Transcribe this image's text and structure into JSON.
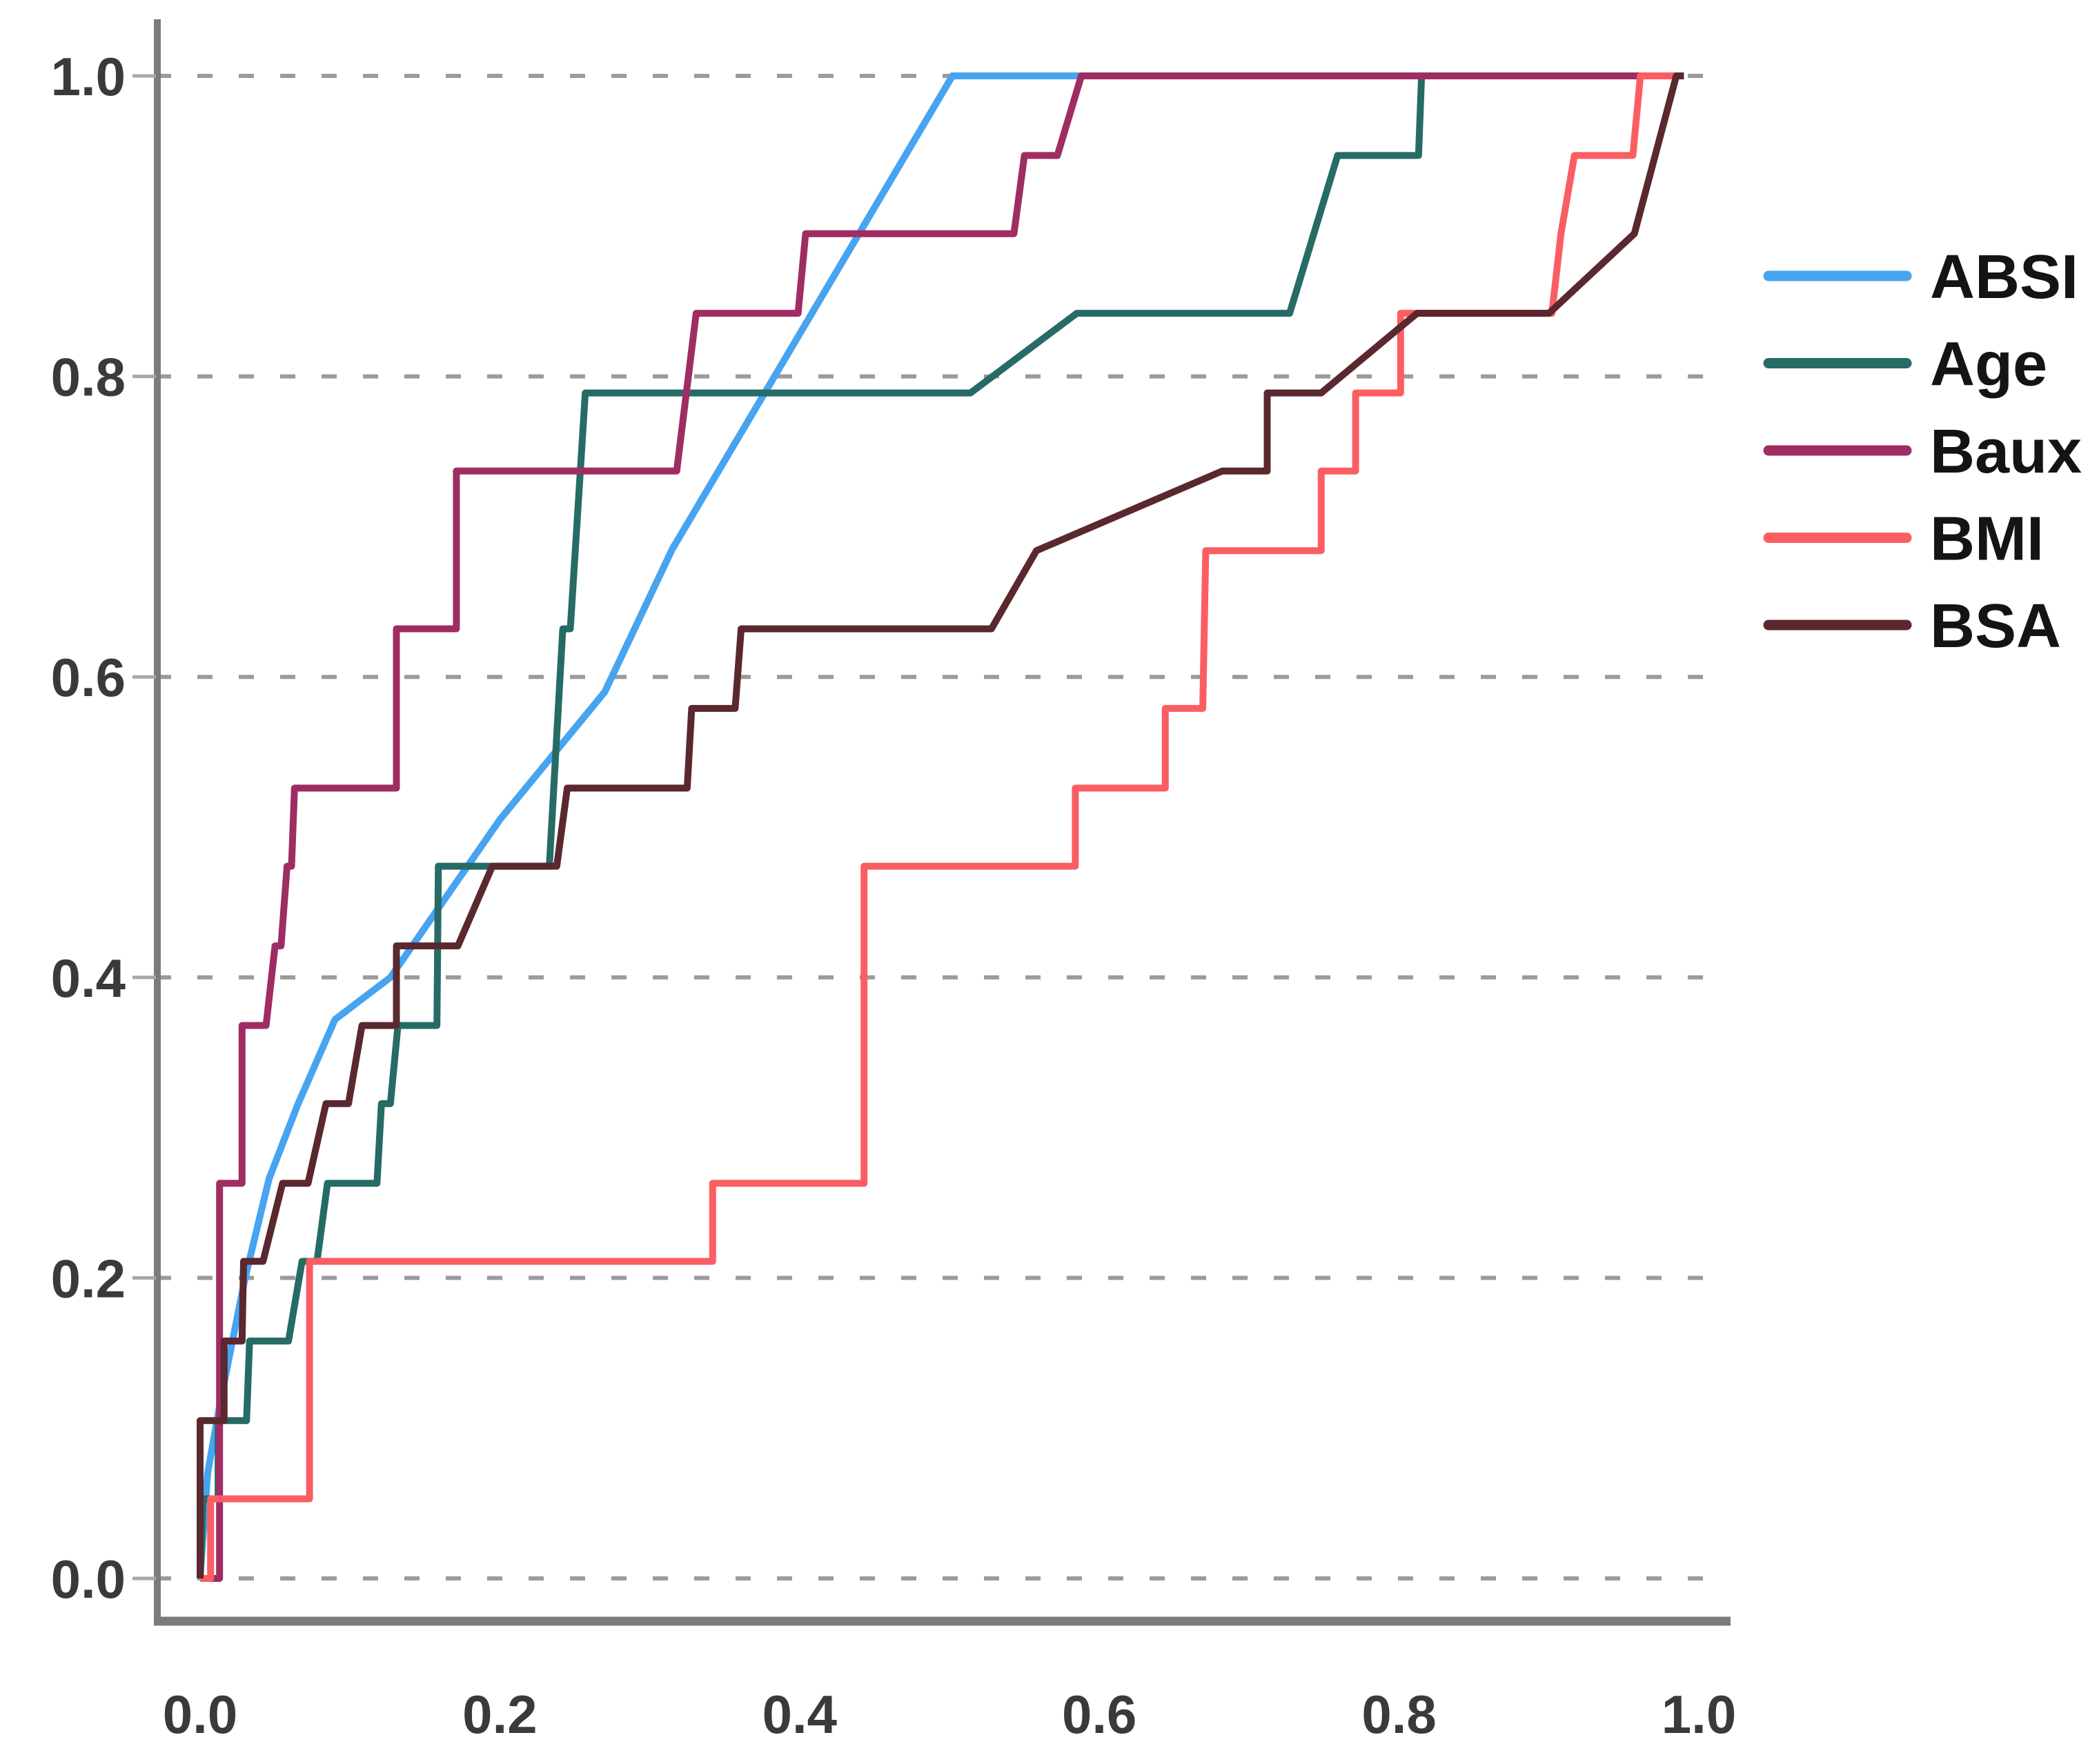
{
  "figure": {
    "background": "#ffffff"
  },
  "colors": {
    "grid": "#9b9b9b",
    "spine": "#7b7b7b",
    "tick_text": "#3a3a3a",
    "legend_text": "#141414",
    "absi": "#47a4f0",
    "age": "#266b66",
    "baux": "#a02c64",
    "bmi": "#fb5e62",
    "bsa": "#5a282e"
  },
  "chart_data": {
    "type": "line",
    "subtype": "roc-step-curves",
    "title": "",
    "xlabel": "",
    "ylabel": "",
    "xlim": [
      0,
      1
    ],
    "ylim": [
      0,
      1
    ],
    "grid": "horizontal-dashed",
    "legend_position": "right",
    "x_tick_labels": [
      "0.0",
      "0.2",
      "0.4",
      "0.6",
      "0.8",
      "1.0"
    ],
    "x_tick_values": [
      0,
      0.2,
      0.4,
      0.6,
      0.8,
      1.0
    ],
    "y_tick_labels": [
      "0.0",
      "0.2",
      "0.4",
      "0.6",
      "0.8",
      "1.0"
    ],
    "y_tick_values": [
      0,
      0.2,
      0.4,
      0.6,
      0.8,
      1.0
    ],
    "series": [
      {
        "name": "ABSI",
        "color": "#47a4f0",
        "points": [
          [
            0,
            0
          ],
          [
            0.005,
            0.07
          ],
          [
            0.013,
            0.115
          ],
          [
            0.03,
            0.2
          ],
          [
            0.046,
            0.266
          ],
          [
            0.065,
            0.315
          ],
          [
            0.09,
            0.372
          ],
          [
            0.127,
            0.4
          ],
          [
            0.2,
            0.505
          ],
          [
            0.27,
            0.59
          ],
          [
            0.315,
            0.685
          ],
          [
            0.502,
            1.0
          ],
          [
            0.99,
            1.0
          ]
        ]
      },
      {
        "name": "Age",
        "color": "#266b66",
        "points": [
          [
            0,
            0
          ],
          [
            0.002,
            0.053
          ],
          [
            0.012,
            0.053
          ],
          [
            0.012,
            0.105
          ],
          [
            0.031,
            0.105
          ],
          [
            0.033,
            0.158
          ],
          [
            0.059,
            0.158
          ],
          [
            0.068,
            0.211
          ],
          [
            0.078,
            0.211
          ],
          [
            0.085,
            0.263
          ],
          [
            0.118,
            0.263
          ],
          [
            0.121,
            0.316
          ],
          [
            0.127,
            0.316
          ],
          [
            0.132,
            0.368
          ],
          [
            0.158,
            0.368
          ],
          [
            0.159,
            0.474
          ],
          [
            0.233,
            0.474
          ],
          [
            0.242,
            0.632
          ],
          [
            0.247,
            0.632
          ],
          [
            0.257,
            0.789
          ],
          [
            0.514,
            0.789
          ],
          [
            0.585,
            0.842
          ],
          [
            0.727,
            0.842
          ],
          [
            0.759,
            0.947
          ],
          [
            0.813,
            0.947
          ],
          [
            0.815,
            1.0
          ],
          [
            0.99,
            1.0
          ]
        ]
      },
      {
        "name": "Baux",
        "color": "#a02c64",
        "points": [
          [
            0,
            0
          ],
          [
            0.013,
            0
          ],
          [
            0.013,
            0.263
          ],
          [
            0.028,
            0.263
          ],
          [
            0.028,
            0.368
          ],
          [
            0.044,
            0.368
          ],
          [
            0.05,
            0.421
          ],
          [
            0.054,
            0.421
          ],
          [
            0.058,
            0.474
          ],
          [
            0.061,
            0.474
          ],
          [
            0.063,
            0.526
          ],
          [
            0.131,
            0.526
          ],
          [
            0.131,
            0.632
          ],
          [
            0.171,
            0.632
          ],
          [
            0.171,
            0.737
          ],
          [
            0.318,
            0.737
          ],
          [
            0.331,
            0.842
          ],
          [
            0.399,
            0.842
          ],
          [
            0.404,
            0.895
          ],
          [
            0.543,
            0.895
          ],
          [
            0.55,
            0.947
          ],
          [
            0.572,
            0.947
          ],
          [
            0.588,
            1.0
          ],
          [
            0.99,
            1.0
          ]
        ]
      },
      {
        "name": "BMI",
        "color": "#fb5e62",
        "points": [
          [
            0,
            0
          ],
          [
            0.007,
            0
          ],
          [
            0.007,
            0.053
          ],
          [
            0.073,
            0.053
          ],
          [
            0.073,
            0.211
          ],
          [
            0.342,
            0.211
          ],
          [
            0.342,
            0.263
          ],
          [
            0.443,
            0.263
          ],
          [
            0.443,
            0.474
          ],
          [
            0.584,
            0.474
          ],
          [
            0.584,
            0.526
          ],
          [
            0.644,
            0.526
          ],
          [
            0.644,
            0.579
          ],
          [
            0.669,
            0.579
          ],
          [
            0.671,
            0.684
          ],
          [
            0.748,
            0.684
          ],
          [
            0.748,
            0.737
          ],
          [
            0.771,
            0.737
          ],
          [
            0.771,
            0.789
          ],
          [
            0.801,
            0.789
          ],
          [
            0.801,
            0.842
          ],
          [
            0.902,
            0.842
          ],
          [
            0.908,
            0.895
          ],
          [
            0.917,
            0.947
          ],
          [
            0.956,
            0.947
          ],
          [
            0.961,
            1.0
          ],
          [
            0.99,
            1.0
          ]
        ]
      },
      {
        "name": "BSA",
        "color": "#5a282e",
        "points": [
          [
            0,
            0
          ],
          [
            0,
            0.105
          ],
          [
            0.016,
            0.105
          ],
          [
            0.016,
            0.158
          ],
          [
            0.028,
            0.158
          ],
          [
            0.029,
            0.211
          ],
          [
            0.042,
            0.211
          ],
          [
            0.055,
            0.263
          ],
          [
            0.072,
            0.263
          ],
          [
            0.084,
            0.316
          ],
          [
            0.099,
            0.316
          ],
          [
            0.108,
            0.368
          ],
          [
            0.131,
            0.368
          ],
          [
            0.131,
            0.421
          ],
          [
            0.172,
            0.421
          ],
          [
            0.195,
            0.474
          ],
          [
            0.238,
            0.474
          ],
          [
            0.245,
            0.526
          ],
          [
            0.325,
            0.526
          ],
          [
            0.328,
            0.579
          ],
          [
            0.357,
            0.579
          ],
          [
            0.361,
            0.632
          ],
          [
            0.528,
            0.632
          ],
          [
            0.558,
            0.684
          ],
          [
            0.682,
            0.737
          ],
          [
            0.712,
            0.737
          ],
          [
            0.712,
            0.789
          ],
          [
            0.748,
            0.789
          ],
          [
            0.812,
            0.842
          ],
          [
            0.9,
            0.842
          ],
          [
            0.957,
            0.895
          ],
          [
            0.985,
            1.0
          ],
          [
            0.99,
            1.0
          ]
        ]
      }
    ]
  }
}
